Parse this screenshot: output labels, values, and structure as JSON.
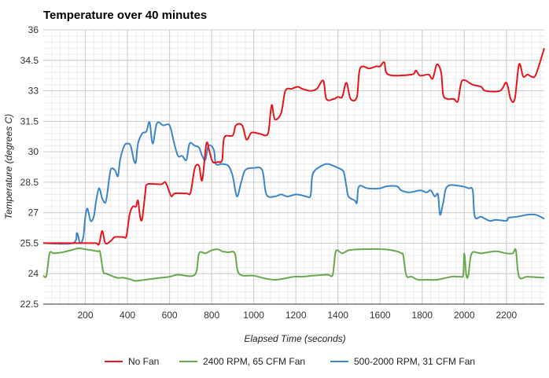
{
  "chart_data": {
    "type": "line",
    "title": "Temperature over 40 minutes",
    "xlabel": "Elapsed Time (seconds)",
    "ylabel": "Temperature (degrees C)",
    "xlim": [
      0,
      2380
    ],
    "ylim": [
      22.5,
      36
    ],
    "xticks": [
      200,
      400,
      600,
      800,
      1000,
      1200,
      1400,
      1600,
      1800,
      2000,
      2200
    ],
    "yticks": [
      22.5,
      24,
      25.5,
      27,
      28.5,
      30,
      31.5,
      33,
      34.5,
      36
    ],
    "ytick_labels": [
      "22.5",
      "24",
      "25.5",
      "27",
      "28.5",
      "30",
      "31.5",
      "33",
      "34.5",
      "36"
    ],
    "grid": true,
    "legend_position": "bottom",
    "series": [
      {
        "name": "No Fan",
        "color": "#e8141b",
        "points": [
          [
            0,
            25.5
          ],
          [
            200,
            25.5
          ],
          [
            250,
            25.5
          ],
          [
            265,
            25.45
          ],
          [
            280,
            26.1
          ],
          [
            295,
            25.5
          ],
          [
            320,
            25.6
          ],
          [
            340,
            25.8
          ],
          [
            380,
            25.8
          ],
          [
            395,
            25.85
          ],
          [
            410,
            26.9
          ],
          [
            425,
            27.3
          ],
          [
            440,
            27.3
          ],
          [
            450,
            27.6
          ],
          [
            460,
            26.8
          ],
          [
            470,
            26.7
          ],
          [
            485,
            28.0
          ],
          [
            495,
            28.4
          ],
          [
            560,
            28.4
          ],
          [
            580,
            28.5
          ],
          [
            600,
            28.0
          ],
          [
            610,
            27.8
          ],
          [
            625,
            27.95
          ],
          [
            680,
            27.95
          ],
          [
            700,
            28.0
          ],
          [
            720,
            29.2
          ],
          [
            740,
            29.3
          ],
          [
            755,
            28.6
          ],
          [
            775,
            30.4
          ],
          [
            790,
            30.0
          ],
          [
            805,
            29.5
          ],
          [
            830,
            29.5
          ],
          [
            850,
            29.6
          ],
          [
            860,
            30.7
          ],
          [
            900,
            30.8
          ],
          [
            915,
            31.3
          ],
          [
            945,
            31.3
          ],
          [
            965,
            30.6
          ],
          [
            985,
            30.9
          ],
          [
            1000,
            30.95
          ],
          [
            1040,
            30.85
          ],
          [
            1055,
            30.8
          ],
          [
            1070,
            31.0
          ],
          [
            1085,
            32.3
          ],
          [
            1100,
            31.6
          ],
          [
            1130,
            31.9
          ],
          [
            1150,
            33.0
          ],
          [
            1180,
            33.1
          ],
          [
            1210,
            33.2
          ],
          [
            1230,
            33.1
          ],
          [
            1270,
            33.0
          ],
          [
            1300,
            33.1
          ],
          [
            1330,
            33.5
          ],
          [
            1345,
            32.6
          ],
          [
            1380,
            32.6
          ],
          [
            1400,
            32.7
          ],
          [
            1420,
            32.7
          ],
          [
            1440,
            33.4
          ],
          [
            1460,
            32.6
          ],
          [
            1490,
            32.7
          ],
          [
            1505,
            34.1
          ],
          [
            1550,
            34.1
          ],
          [
            1580,
            34.2
          ],
          [
            1600,
            34.2
          ],
          [
            1620,
            34.4
          ],
          [
            1640,
            33.8
          ],
          [
            1750,
            33.8
          ],
          [
            1770,
            34.0
          ],
          [
            1790,
            33.75
          ],
          [
            1830,
            33.8
          ],
          [
            1850,
            33.6
          ],
          [
            1870,
            34.3
          ],
          [
            1890,
            33.9
          ],
          [
            1900,
            32.8
          ],
          [
            1920,
            32.6
          ],
          [
            1950,
            32.6
          ],
          [
            1970,
            32.5
          ],
          [
            1990,
            33.5
          ],
          [
            2040,
            33.3
          ],
          [
            2080,
            33.2
          ],
          [
            2100,
            33.0
          ],
          [
            2170,
            33.0
          ],
          [
            2200,
            33.4
          ],
          [
            2220,
            32.6
          ],
          [
            2240,
            32.6
          ],
          [
            2260,
            34.3
          ],
          [
            2280,
            33.7
          ],
          [
            2300,
            33.8
          ],
          [
            2320,
            33.7
          ],
          [
            2340,
            33.8
          ],
          [
            2380,
            35.1
          ]
        ]
      },
      {
        "name": "2400 RPM, 65 CFM Fan",
        "color": "#6aa84f",
        "points": [
          [
            0,
            23.9
          ],
          [
            15,
            23.9
          ],
          [
            30,
            25.0
          ],
          [
            50,
            25.0
          ],
          [
            90,
            25.05
          ],
          [
            130,
            25.15
          ],
          [
            170,
            25.25
          ],
          [
            200,
            25.2
          ],
          [
            260,
            25.1
          ],
          [
            270,
            25.05
          ],
          [
            285,
            24.1
          ],
          [
            300,
            24.0
          ],
          [
            350,
            23.8
          ],
          [
            380,
            23.8
          ],
          [
            420,
            23.7
          ],
          [
            440,
            23.65
          ],
          [
            520,
            23.75
          ],
          [
            560,
            23.8
          ],
          [
            600,
            23.85
          ],
          [
            640,
            23.95
          ],
          [
            720,
            23.95
          ],
          [
            740,
            25.0
          ],
          [
            770,
            25.0
          ],
          [
            800,
            25.15
          ],
          [
            830,
            25.2
          ],
          [
            850,
            25.1
          ],
          [
            880,
            25.05
          ],
          [
            910,
            25.0
          ],
          [
            930,
            24.0
          ],
          [
            1000,
            23.9
          ],
          [
            1060,
            23.75
          ],
          [
            1100,
            23.7
          ],
          [
            1140,
            23.75
          ],
          [
            1190,
            23.85
          ],
          [
            1230,
            23.85
          ],
          [
            1280,
            23.9
          ],
          [
            1350,
            23.95
          ],
          [
            1375,
            23.95
          ],
          [
            1390,
            25.1
          ],
          [
            1420,
            25.0
          ],
          [
            1450,
            25.15
          ],
          [
            1500,
            25.2
          ],
          [
            1620,
            25.2
          ],
          [
            1680,
            25.1
          ],
          [
            1700,
            25.0
          ],
          [
            1710,
            24.9
          ],
          [
            1725,
            23.9
          ],
          [
            1750,
            23.85
          ],
          [
            1780,
            23.7
          ],
          [
            1820,
            23.7
          ],
          [
            1870,
            23.7
          ],
          [
            1940,
            23.85
          ],
          [
            1980,
            23.85
          ],
          [
            1995,
            23.95
          ],
          [
            2000,
            25.0
          ],
          [
            2010,
            23.9
          ],
          [
            2020,
            23.95
          ],
          [
            2035,
            25.0
          ],
          [
            2080,
            25.0
          ],
          [
            2150,
            25.1
          ],
          [
            2200,
            25.0
          ],
          [
            2230,
            25.0
          ],
          [
            2245,
            25.15
          ],
          [
            2260,
            23.85
          ],
          [
            2300,
            23.85
          ],
          [
            2380,
            23.8
          ]
        ]
      },
      {
        "name": "500-2000 RPM, 31 CFM Fan",
        "color": "#3d85c6",
        "points": [
          [
            0,
            25.5
          ],
          [
            140,
            25.5
          ],
          [
            160,
            26.0
          ],
          [
            175,
            25.5
          ],
          [
            190,
            25.8
          ],
          [
            200,
            26.8
          ],
          [
            210,
            27.2
          ],
          [
            225,
            26.6
          ],
          [
            240,
            26.8
          ],
          [
            250,
            27.5
          ],
          [
            265,
            28.2
          ],
          [
            280,
            27.7
          ],
          [
            295,
            27.5
          ],
          [
            305,
            28.0
          ],
          [
            320,
            29.1
          ],
          [
            340,
            29.1
          ],
          [
            355,
            28.8
          ],
          [
            365,
            29.6
          ],
          [
            385,
            30.3
          ],
          [
            400,
            30.4
          ],
          [
            415,
            30.3
          ],
          [
            430,
            29.6
          ],
          [
            440,
            29.5
          ],
          [
            450,
            30.4
          ],
          [
            470,
            30.9
          ],
          [
            490,
            31.0
          ],
          [
            505,
            31.45
          ],
          [
            520,
            30.4
          ],
          [
            540,
            31.4
          ],
          [
            570,
            31.3
          ],
          [
            600,
            31.3
          ],
          [
            620,
            30.5
          ],
          [
            640,
            29.8
          ],
          [
            660,
            29.8
          ],
          [
            680,
            29.6
          ],
          [
            695,
            30.4
          ],
          [
            720,
            30.3
          ],
          [
            740,
            30.2
          ],
          [
            755,
            29.8
          ],
          [
            770,
            29.6
          ],
          [
            785,
            30.3
          ],
          [
            810,
            30.1
          ],
          [
            820,
            29.4
          ],
          [
            850,
            29.4
          ],
          [
            880,
            29.3
          ],
          [
            900,
            28.8
          ],
          [
            920,
            27.8
          ],
          [
            940,
            28.5
          ],
          [
            960,
            29.1
          ],
          [
            1000,
            29.2
          ],
          [
            1040,
            29.1
          ],
          [
            1060,
            27.9
          ],
          [
            1100,
            27.8
          ],
          [
            1130,
            27.9
          ],
          [
            1160,
            27.8
          ],
          [
            1200,
            27.9
          ],
          [
            1230,
            27.85
          ],
          [
            1250,
            27.8
          ],
          [
            1270,
            27.85
          ],
          [
            1280,
            28.9
          ],
          [
            1320,
            29.3
          ],
          [
            1350,
            29.4
          ],
          [
            1380,
            29.3
          ],
          [
            1420,
            29.1
          ],
          [
            1430,
            28.9
          ],
          [
            1440,
            28.3
          ],
          [
            1450,
            27.8
          ],
          [
            1480,
            27.6
          ],
          [
            1490,
            27.5
          ],
          [
            1500,
            28.3
          ],
          [
            1540,
            28.2
          ],
          [
            1600,
            28.2
          ],
          [
            1630,
            28.3
          ],
          [
            1680,
            28.3
          ],
          [
            1700,
            28.1
          ],
          [
            1740,
            28.0
          ],
          [
            1790,
            28.1
          ],
          [
            1820,
            28.0
          ],
          [
            1840,
            28.1
          ],
          [
            1860,
            27.8
          ],
          [
            1875,
            27.9
          ],
          [
            1885,
            26.9
          ],
          [
            1900,
            27.5
          ],
          [
            1920,
            28.3
          ],
          [
            1990,
            28.3
          ],
          [
            2020,
            28.2
          ],
          [
            2040,
            28.1
          ],
          [
            2050,
            26.8
          ],
          [
            2080,
            26.8
          ],
          [
            2120,
            26.6
          ],
          [
            2150,
            26.65
          ],
          [
            2200,
            26.6
          ],
          [
            2210,
            26.75
          ],
          [
            2250,
            26.8
          ],
          [
            2300,
            26.9
          ],
          [
            2340,
            26.9
          ],
          [
            2380,
            26.7
          ]
        ]
      }
    ]
  }
}
